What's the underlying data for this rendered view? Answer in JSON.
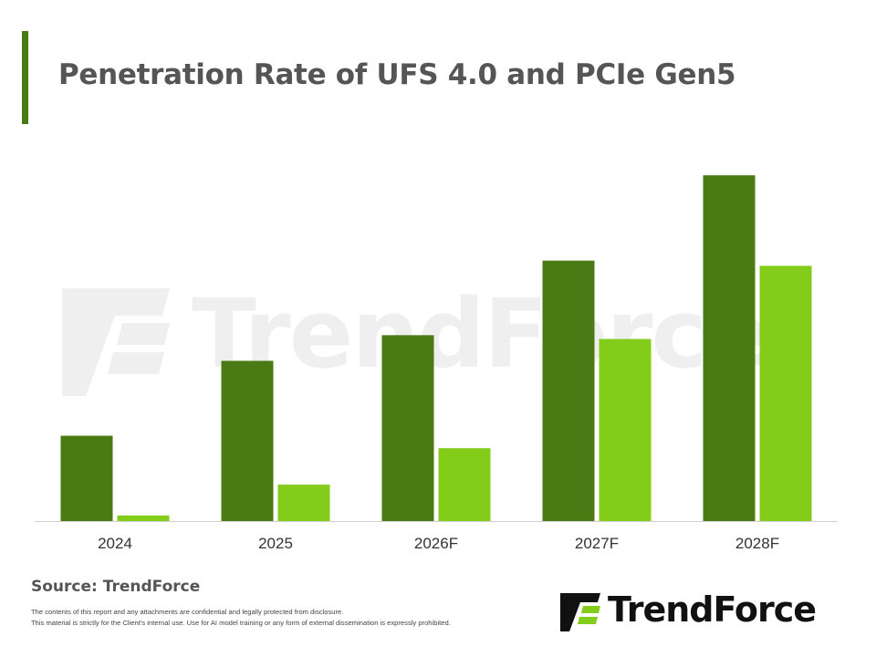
{
  "title": "Penetration Rate of UFS 4.0 and PCIe Gen5",
  "source": "Source: TrendForce",
  "disclaimer": [
    "The contents of this report and any attachments are confidential and legally protected from disclosure.",
    "This material is strictly for the Client's internal use. Use for AI model training or any form of external dissemination is expressly prohibited."
  ],
  "brand": {
    "name": "TrendForce",
    "watermark": "TrendForce"
  },
  "colors": {
    "accent": "#4a7a14",
    "series_dark": "#4a7a14",
    "series_light": "#84cc1a",
    "text": "#555555",
    "axis": "#d0d0d0",
    "logo_dark": "#111111"
  },
  "icons": {
    "logo": "trendforce-logo-icon"
  },
  "chart_data": {
    "type": "bar",
    "title": "Penetration Rate of UFS 4.0 and PCIe Gen5",
    "xlabel": "",
    "ylabel": "",
    "categories": [
      "2024",
      "2025",
      "2026F",
      "2027F",
      "2028F"
    ],
    "series": [
      {
        "values": [
          24.6,
          46.2,
          53.6,
          75.1,
          99.7
        ],
        "color": "#4a7a14"
      },
      {
        "values": [
          1.6,
          10.5,
          21.0,
          52.5,
          73.6
        ],
        "color": "#84cc1a"
      }
    ],
    "ylim": [
      0,
      100
    ],
    "grid": false,
    "legend": "none",
    "y_axis_visible": false
  }
}
